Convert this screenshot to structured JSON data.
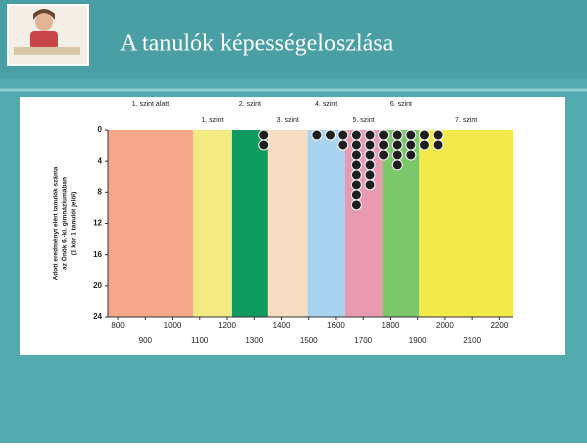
{
  "title": "A tanulók képességeloszlása",
  "chart_data": {
    "type": "dot-histogram",
    "y_label": [
      "Adott eredményt elért tanulók száma",
      "az Önök 6.-kl. gimnáziumában",
      "(1 kör 1 tanulót jelöl)"
    ],
    "levels": [
      {
        "name": "1. szint alatt",
        "from": 763,
        "to": 1075,
        "color": "#f7a78a"
      },
      {
        "name": "1. szint",
        "from": 1075,
        "to": 1218,
        "color": "#f3ea82"
      },
      {
        "name": "2. szint",
        "from": 1218,
        "to": 1350,
        "color": "#0f9a60"
      },
      {
        "name": "3. szint",
        "from": 1350,
        "to": 1496,
        "color": "#f6dcc0"
      },
      {
        "name": "4. szint",
        "from": 1496,
        "to": 1632,
        "color": "#a9d3ef"
      },
      {
        "name": "5. szint",
        "from": 1632,
        "to": 1771,
        "color": "#e79ab0"
      },
      {
        "name": "6. szint",
        "from": 1771,
        "to": 1906,
        "color": "#7cc66c"
      },
      {
        "name": "7. szint",
        "from": 1906,
        "to": 2250,
        "color": "#f2ea4a"
      }
    ],
    "x": [
      1335,
      1530,
      1580,
      1625,
      1675,
      1725,
      1775,
      1825,
      1875,
      1925,
      1975
    ],
    "counts": [
      2,
      1,
      1,
      2,
      8,
      6,
      3,
      4,
      3,
      2,
      2
    ],
    "dot_color": "#1e1e1e",
    "xlim": [
      763,
      2250
    ],
    "xticks": [
      800,
      900,
      1000,
      1100,
      1200,
      1300,
      1400,
      1500,
      1600,
      1700,
      1800,
      1900,
      2000,
      2100,
      2200
    ],
    "ylim": [
      0,
      24
    ],
    "yticks": [
      0,
      4,
      8,
      12,
      16,
      20,
      24
    ]
  }
}
